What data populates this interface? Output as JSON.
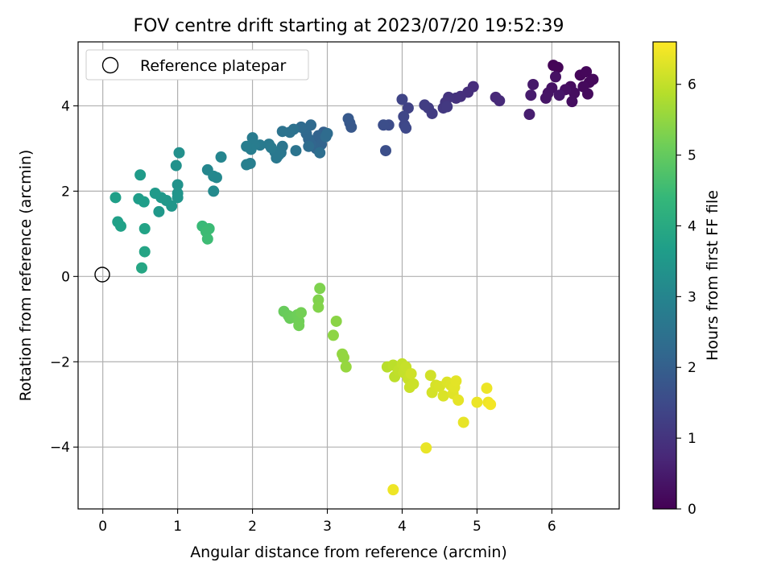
{
  "chart_data": {
    "type": "scatter",
    "title": "FOV centre drift starting at 2023/07/20 19:52:39",
    "xlabel": "Angular distance from reference (arcmin)",
    "ylabel": "Rotation from reference (arcmin)",
    "xlim": [
      -0.33,
      6.9
    ],
    "ylim": [
      -5.45,
      5.5
    ],
    "xticks": [
      0,
      1,
      2,
      3,
      4,
      5,
      6
    ],
    "xtick_labels": [
      "0",
      "1",
      "2",
      "3",
      "4",
      "5",
      "6"
    ],
    "yticks": [
      -4,
      -2,
      0,
      2,
      4
    ],
    "ytick_labels": [
      "−4",
      "−2",
      "0",
      "2",
      "4"
    ],
    "grid": true,
    "legend": {
      "placement": "upper-left",
      "entries": [
        {
          "label": "Reference platepar",
          "marker": "open-circle"
        }
      ]
    },
    "reference_point": {
      "x": 0,
      "y": 0
    },
    "colorbar": {
      "label": "Hours from first FF file",
      "colormap": "viridis",
      "range": [
        0,
        6.6
      ],
      "ticks": [
        0,
        1,
        2,
        3,
        4,
        5,
        6
      ],
      "tick_labels": [
        "0",
        "1",
        "2",
        "3",
        "4",
        "5",
        "6"
      ]
    },
    "colormap_stops": [
      "#440154",
      "#482878",
      "#3e4989",
      "#31688e",
      "#26828e",
      "#1f9e89",
      "#35b779",
      "#6ece58",
      "#b5de2b",
      "#fde725"
    ],
    "points": [
      {
        "x": 6.02,
        "y": 4.95,
        "h": 0.05
      },
      {
        "x": 6.08,
        "y": 4.9,
        "h": 0.07
      },
      {
        "x": 6.38,
        "y": 4.72,
        "h": 0.1
      },
      {
        "x": 6.46,
        "y": 4.8,
        "h": 0.12
      },
      {
        "x": 6.5,
        "y": 4.55,
        "h": 0.13
      },
      {
        "x": 6.55,
        "y": 4.62,
        "h": 0.15
      },
      {
        "x": 6.42,
        "y": 4.45,
        "h": 0.17
      },
      {
        "x": 6.48,
        "y": 4.28,
        "h": 0.18
      },
      {
        "x": 6.25,
        "y": 4.45,
        "h": 0.2
      },
      {
        "x": 6.3,
        "y": 4.3,
        "h": 0.22
      },
      {
        "x": 6.27,
        "y": 4.1,
        "h": 0.25
      },
      {
        "x": 6.18,
        "y": 4.38,
        "h": 0.28
      },
      {
        "x": 6.05,
        "y": 4.68,
        "h": 0.3
      },
      {
        "x": 6.0,
        "y": 4.42,
        "h": 0.32
      },
      {
        "x": 5.95,
        "y": 4.3,
        "h": 0.35
      },
      {
        "x": 5.92,
        "y": 4.18,
        "h": 0.37
      },
      {
        "x": 6.1,
        "y": 4.25,
        "h": 0.4
      },
      {
        "x": 5.75,
        "y": 4.5,
        "h": 0.45
      },
      {
        "x": 5.72,
        "y": 4.25,
        "h": 0.5
      },
      {
        "x": 5.7,
        "y": 3.8,
        "h": 0.55
      },
      {
        "x": 5.25,
        "y": 4.2,
        "h": 0.75
      },
      {
        "x": 5.3,
        "y": 4.12,
        "h": 0.78
      },
      {
        "x": 4.95,
        "y": 4.45,
        "h": 0.85
      },
      {
        "x": 4.88,
        "y": 4.32,
        "h": 0.88
      },
      {
        "x": 4.78,
        "y": 4.22,
        "h": 0.9
      },
      {
        "x": 4.72,
        "y": 4.18,
        "h": 0.95
      },
      {
        "x": 4.62,
        "y": 4.2,
        "h": 1.0
      },
      {
        "x": 4.58,
        "y": 4.08,
        "h": 1.05
      },
      {
        "x": 4.55,
        "y": 3.95,
        "h": 1.08
      },
      {
        "x": 4.6,
        "y": 3.98,
        "h": 1.1
      },
      {
        "x": 4.4,
        "y": 3.82,
        "h": 1.15
      },
      {
        "x": 4.35,
        "y": 3.95,
        "h": 1.18
      },
      {
        "x": 4.3,
        "y": 4.02,
        "h": 1.2
      },
      {
        "x": 4.08,
        "y": 3.95,
        "h": 1.3
      },
      {
        "x": 4.0,
        "y": 4.15,
        "h": 1.35
      },
      {
        "x": 4.02,
        "y": 3.75,
        "h": 1.4
      },
      {
        "x": 4.03,
        "y": 3.55,
        "h": 1.42
      },
      {
        "x": 4.05,
        "y": 3.48,
        "h": 1.45
      },
      {
        "x": 3.82,
        "y": 3.55,
        "h": 1.55
      },
      {
        "x": 3.75,
        "y": 3.55,
        "h": 1.58
      },
      {
        "x": 3.78,
        "y": 2.95,
        "h": 1.6
      },
      {
        "x": 3.3,
        "y": 3.6,
        "h": 1.8
      },
      {
        "x": 3.32,
        "y": 3.5,
        "h": 1.82
      },
      {
        "x": 3.28,
        "y": 3.7,
        "h": 1.85
      },
      {
        "x": 2.95,
        "y": 3.38,
        "h": 2.0
      },
      {
        "x": 2.9,
        "y": 3.25,
        "h": 2.02
      },
      {
        "x": 2.85,
        "y": 3.15,
        "h": 2.05
      },
      {
        "x": 2.88,
        "y": 3.3,
        "h": 2.08
      },
      {
        "x": 2.92,
        "y": 3.1,
        "h": 2.1
      },
      {
        "x": 2.85,
        "y": 3.0,
        "h": 2.12
      },
      {
        "x": 2.78,
        "y": 3.1,
        "h": 2.15
      },
      {
        "x": 2.75,
        "y": 3.22,
        "h": 2.18
      },
      {
        "x": 2.72,
        "y": 3.35,
        "h": 2.2
      },
      {
        "x": 2.7,
        "y": 3.45,
        "h": 2.22
      },
      {
        "x": 2.78,
        "y": 3.55,
        "h": 2.25
      },
      {
        "x": 2.65,
        "y": 3.5,
        "h": 2.28
      },
      {
        "x": 2.98,
        "y": 3.28,
        "h": 2.3
      },
      {
        "x": 3.0,
        "y": 3.35,
        "h": 2.32
      },
      {
        "x": 2.75,
        "y": 3.05,
        "h": 2.35
      },
      {
        "x": 2.9,
        "y": 2.9,
        "h": 2.38
      },
      {
        "x": 2.55,
        "y": 3.45,
        "h": 2.45
      },
      {
        "x": 2.5,
        "y": 3.38,
        "h": 2.48
      },
      {
        "x": 2.4,
        "y": 3.4,
        "h": 2.5
      },
      {
        "x": 2.58,
        "y": 2.95,
        "h": 2.55
      },
      {
        "x": 2.4,
        "y": 3.05,
        "h": 2.58
      },
      {
        "x": 2.38,
        "y": 2.9,
        "h": 2.6
      },
      {
        "x": 2.35,
        "y": 2.85,
        "h": 2.62
      },
      {
        "x": 2.3,
        "y": 2.92,
        "h": 2.64
      },
      {
        "x": 2.32,
        "y": 2.78,
        "h": 2.66
      },
      {
        "x": 2.22,
        "y": 3.1,
        "h": 2.68
      },
      {
        "x": 2.25,
        "y": 3.02,
        "h": 2.7
      },
      {
        "x": 2.1,
        "y": 3.08,
        "h": 2.72
      },
      {
        "x": 2.0,
        "y": 3.25,
        "h": 2.74
      },
      {
        "x": 2.02,
        "y": 3.1,
        "h": 2.76
      },
      {
        "x": 1.98,
        "y": 2.98,
        "h": 2.78
      },
      {
        "x": 1.92,
        "y": 3.05,
        "h": 2.8
      },
      {
        "x": 1.97,
        "y": 2.65,
        "h": 2.82
      },
      {
        "x": 1.92,
        "y": 2.62,
        "h": 2.84
      },
      {
        "x": 1.58,
        "y": 2.8,
        "h": 3.0
      },
      {
        "x": 1.4,
        "y": 2.5,
        "h": 3.05
      },
      {
        "x": 1.48,
        "y": 2.35,
        "h": 3.08
      },
      {
        "x": 1.52,
        "y": 2.32,
        "h": 3.1
      },
      {
        "x": 1.48,
        "y": 2.0,
        "h": 3.15
      },
      {
        "x": 1.02,
        "y": 2.9,
        "h": 3.3
      },
      {
        "x": 0.98,
        "y": 2.6,
        "h": 3.33
      },
      {
        "x": 1.0,
        "y": 2.15,
        "h": 3.36
      },
      {
        "x": 1.0,
        "y": 1.95,
        "h": 3.4
      },
      {
        "x": 1.0,
        "y": 1.85,
        "h": 3.42
      },
      {
        "x": 0.92,
        "y": 1.65,
        "h": 3.45
      },
      {
        "x": 0.85,
        "y": 1.78,
        "h": 3.48
      },
      {
        "x": 0.78,
        "y": 1.85,
        "h": 3.5
      },
      {
        "x": 0.75,
        "y": 1.52,
        "h": 3.52
      },
      {
        "x": 0.7,
        "y": 1.95,
        "h": 3.55
      },
      {
        "x": 0.5,
        "y": 2.38,
        "h": 3.6
      },
      {
        "x": 0.48,
        "y": 1.82,
        "h": 3.63
      },
      {
        "x": 0.55,
        "y": 1.75,
        "h": 3.66
      },
      {
        "x": 0.17,
        "y": 1.85,
        "h": 3.7
      },
      {
        "x": 0.2,
        "y": 1.28,
        "h": 3.72
      },
      {
        "x": 0.24,
        "y": 1.18,
        "h": 3.74
      },
      {
        "x": 0.56,
        "y": 1.12,
        "h": 3.8
      },
      {
        "x": 0.56,
        "y": 0.58,
        "h": 3.85
      },
      {
        "x": 0.52,
        "y": 0.2,
        "h": 3.9
      },
      {
        "x": 1.33,
        "y": 1.18,
        "h": 4.45
      },
      {
        "x": 1.42,
        "y": 1.12,
        "h": 4.48
      },
      {
        "x": 1.38,
        "y": 1.05,
        "h": 4.5
      },
      {
        "x": 1.4,
        "y": 0.88,
        "h": 4.52
      },
      {
        "x": 2.42,
        "y": -0.82,
        "h": 5.05
      },
      {
        "x": 2.48,
        "y": -0.92,
        "h": 5.07
      },
      {
        "x": 2.5,
        "y": -0.98,
        "h": 5.08
      },
      {
        "x": 2.55,
        "y": -0.95,
        "h": 5.1
      },
      {
        "x": 2.6,
        "y": -0.9,
        "h": 5.12
      },
      {
        "x": 2.62,
        "y": -1.05,
        "h": 5.14
      },
      {
        "x": 2.62,
        "y": -1.15,
        "h": 5.16
      },
      {
        "x": 2.65,
        "y": -0.85,
        "h": 5.18
      },
      {
        "x": 2.9,
        "y": -0.28,
        "h": 5.3
      },
      {
        "x": 2.88,
        "y": -0.55,
        "h": 5.32
      },
      {
        "x": 2.88,
        "y": -0.72,
        "h": 5.34
      },
      {
        "x": 3.12,
        "y": -1.05,
        "h": 5.42
      },
      {
        "x": 3.08,
        "y": -1.38,
        "h": 5.45
      },
      {
        "x": 3.2,
        "y": -1.82,
        "h": 5.5
      },
      {
        "x": 3.22,
        "y": -1.9,
        "h": 5.52
      },
      {
        "x": 3.25,
        "y": -2.12,
        "h": 5.55
      },
      {
        "x": 3.8,
        "y": -2.12,
        "h": 5.9
      },
      {
        "x": 3.88,
        "y": -2.08,
        "h": 5.93
      },
      {
        "x": 3.9,
        "y": -2.35,
        "h": 5.95
      },
      {
        "x": 3.95,
        "y": -2.2,
        "h": 5.98
      },
      {
        "x": 4.0,
        "y": -2.05,
        "h": 6.0
      },
      {
        "x": 4.02,
        "y": -2.25,
        "h": 6.02
      },
      {
        "x": 4.05,
        "y": -2.12,
        "h": 6.04
      },
      {
        "x": 4.08,
        "y": -2.4,
        "h": 6.06
      },
      {
        "x": 4.1,
        "y": -2.6,
        "h": 6.08
      },
      {
        "x": 4.15,
        "y": -2.52,
        "h": 6.1
      },
      {
        "x": 4.12,
        "y": -2.28,
        "h": 6.12
      },
      {
        "x": 4.32,
        "y": -4.02,
        "h": 6.4
      },
      {
        "x": 3.88,
        "y": -5.0,
        "h": 6.45
      },
      {
        "x": 4.38,
        "y": -2.32,
        "h": 6.15
      },
      {
        "x": 4.4,
        "y": -2.72,
        "h": 6.18
      },
      {
        "x": 4.45,
        "y": -2.55,
        "h": 6.2
      },
      {
        "x": 4.5,
        "y": -2.58,
        "h": 6.22
      },
      {
        "x": 4.55,
        "y": -2.8,
        "h": 6.24
      },
      {
        "x": 4.6,
        "y": -2.48,
        "h": 6.26
      },
      {
        "x": 4.65,
        "y": -2.55,
        "h": 6.28
      },
      {
        "x": 4.68,
        "y": -2.75,
        "h": 6.3
      },
      {
        "x": 4.7,
        "y": -2.6,
        "h": 6.32
      },
      {
        "x": 4.72,
        "y": -2.45,
        "h": 6.34
      },
      {
        "x": 4.75,
        "y": -2.9,
        "h": 6.36
      },
      {
        "x": 4.82,
        "y": -3.42,
        "h": 6.38
      },
      {
        "x": 5.0,
        "y": -2.95,
        "h": 6.42
      },
      {
        "x": 5.13,
        "y": -2.62,
        "h": 6.44
      },
      {
        "x": 5.15,
        "y": -2.95,
        "h": 6.46
      },
      {
        "x": 5.18,
        "y": -3.0,
        "h": 6.5
      }
    ]
  }
}
